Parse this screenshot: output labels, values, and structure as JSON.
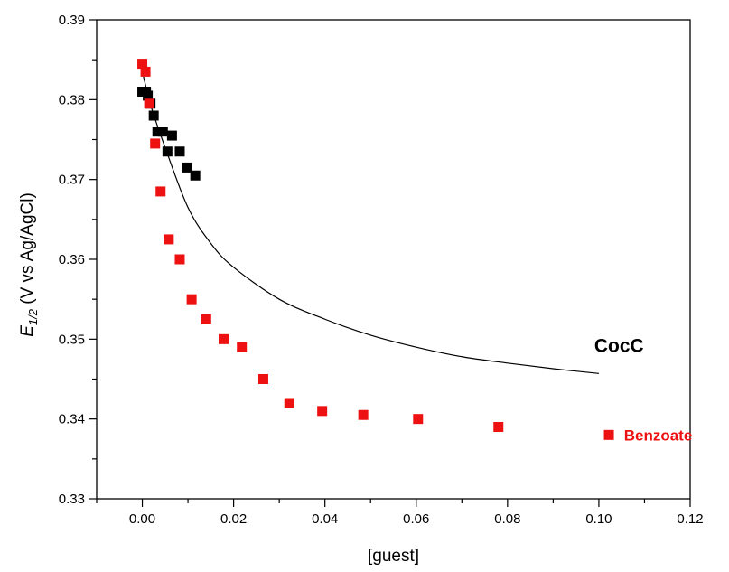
{
  "chart_data": {
    "type": "scatter",
    "xlabel": "[guest]",
    "ylabel": {
      "symbol": "E",
      "subscript": "1/2",
      "rest": " (V vs Ag/AgCl)"
    },
    "xlim": [
      -0.01,
      0.12
    ],
    "ylim": [
      0.33,
      0.39
    ],
    "x_ticks": [
      0.0,
      0.02,
      0.04,
      0.06,
      0.08,
      0.1,
      0.12
    ],
    "x_tick_labels": [
      "0.00",
      "0.02",
      "0.04",
      "0.06",
      "0.08",
      "0.10",
      "0.12"
    ],
    "y_ticks": [
      0.33,
      0.34,
      0.35,
      0.36,
      0.37,
      0.38,
      0.39
    ],
    "y_tick_labels": [
      "0.33",
      "0.34",
      "0.35",
      "0.36",
      "0.37",
      "0.38",
      "0.39"
    ],
    "grid": false,
    "series": [
      {
        "name": "CocC",
        "color": "#000000",
        "marker": "square",
        "points": [
          [
            0.0,
            0.381
          ],
          [
            0.0008,
            0.381
          ],
          [
            0.0012,
            0.3805
          ],
          [
            0.0018,
            0.3795
          ],
          [
            0.0025,
            0.378
          ],
          [
            0.0033,
            0.376
          ],
          [
            0.0045,
            0.376
          ],
          [
            0.0055,
            0.3735
          ],
          [
            0.0065,
            0.3755
          ],
          [
            0.0082,
            0.3735
          ],
          [
            0.0098,
            0.3715
          ],
          [
            0.0116,
            0.3705
          ]
        ]
      },
      {
        "name": "Benzoate",
        "color": "#ee1111",
        "marker": "square",
        "points": [
          [
            0.0,
            0.3845
          ],
          [
            0.0007,
            0.3835
          ],
          [
            0.0015,
            0.3795
          ],
          [
            0.0028,
            0.3745
          ],
          [
            0.004,
            0.3685
          ],
          [
            0.0058,
            0.3625
          ],
          [
            0.0082,
            0.36
          ],
          [
            0.0108,
            0.355
          ],
          [
            0.014,
            0.3525
          ],
          [
            0.0178,
            0.35
          ],
          [
            0.0218,
            0.349
          ],
          [
            0.0265,
            0.345
          ],
          [
            0.0322,
            0.342
          ],
          [
            0.0394,
            0.341
          ],
          [
            0.0484,
            0.3405
          ],
          [
            0.0604,
            0.34
          ],
          [
            0.078,
            0.339
          ],
          [
            0.1022,
            0.338
          ]
        ]
      }
    ],
    "fit_curve": {
      "series": "CocC",
      "color": "#000000",
      "points": [
        [
          0.0,
          0.3835
        ],
        [
          0.002,
          0.379
        ],
        [
          0.005,
          0.374
        ],
        [
          0.01,
          0.3665
        ],
        [
          0.015,
          0.362
        ],
        [
          0.02,
          0.359
        ],
        [
          0.03,
          0.355
        ],
        [
          0.04,
          0.3525
        ],
        [
          0.05,
          0.3505
        ],
        [
          0.06,
          0.349
        ],
        [
          0.07,
          0.3478
        ],
        [
          0.08,
          0.347
        ],
        [
          0.09,
          0.3463
        ],
        [
          0.1,
          0.3457
        ]
      ]
    },
    "annotations": [
      {
        "text": "CocC",
        "x": 0.099,
        "y": 0.3493,
        "color": "#000000"
      },
      {
        "text": "Benzoate",
        "x": 0.1055,
        "y": 0.338,
        "color": "#ee1111"
      }
    ]
  }
}
